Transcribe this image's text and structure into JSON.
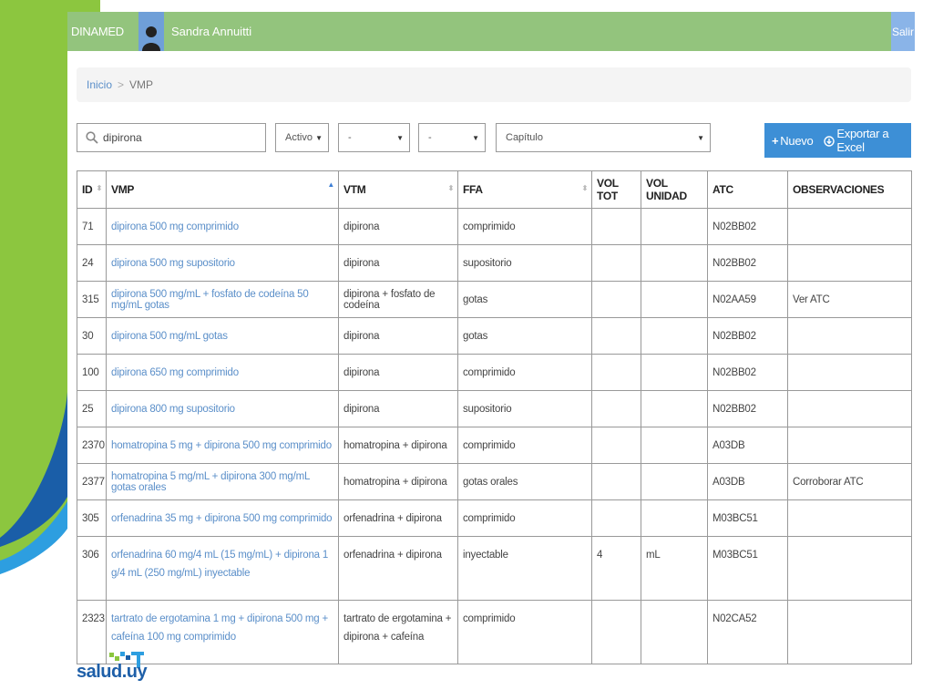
{
  "header": {
    "brand": "DINAMED",
    "user_name": "Sandra Annuitti",
    "logout_label": "Salir"
  },
  "breadcrumb": {
    "home": "Inicio",
    "separator": ">",
    "current": "VMP"
  },
  "filters": {
    "search_value": "dipirona",
    "status_value": "Activo",
    "filter2_value": "-",
    "filter3_value": "-",
    "chapter_value": "Capítulo"
  },
  "actions": {
    "new_label": "Nuevo",
    "export_label": "Exportar a Excel"
  },
  "table": {
    "headers": {
      "id": "ID",
      "vmp": "VMP",
      "vtm": "VTM",
      "ffa": "FFA",
      "vol_tot": "VOL TOT",
      "vol_unidad": "VOL UNIDAD",
      "atc": "ATC",
      "observaciones": "OBSERVACIONES"
    },
    "rows": [
      {
        "id": "71",
        "vmp": "dipirona 500 mg comprimido",
        "vtm": "dipirona",
        "ffa": "comprimido",
        "vol_tot": "",
        "vol_unidad": "",
        "atc": "N02BB02",
        "obs": ""
      },
      {
        "id": "24",
        "vmp": "dipirona 500 mg supositorio",
        "vtm": "dipirona",
        "ffa": "supositorio",
        "vol_tot": "",
        "vol_unidad": "",
        "atc": "N02BB02",
        "obs": ""
      },
      {
        "id": "315",
        "vmp": "dipirona 500 mg/mL + fosfato de codeína 50 mg/mL gotas",
        "vtm": "dipirona + fosfato de codeína",
        "ffa": "gotas",
        "vol_tot": "",
        "vol_unidad": "",
        "atc": "N02AA59",
        "obs": "Ver ATC"
      },
      {
        "id": "30",
        "vmp": "dipirona 500 mg/mL gotas",
        "vtm": "dipirona",
        "ffa": "gotas",
        "vol_tot": "",
        "vol_unidad": "",
        "atc": "N02BB02",
        "obs": ""
      },
      {
        "id": "100",
        "vmp": "dipirona 650 mg comprimido",
        "vtm": "dipirona",
        "ffa": "comprimido",
        "vol_tot": "",
        "vol_unidad": "",
        "atc": "N02BB02",
        "obs": ""
      },
      {
        "id": "25",
        "vmp": "dipirona 800 mg supositorio",
        "vtm": "dipirona",
        "ffa": "supositorio",
        "vol_tot": "",
        "vol_unidad": "",
        "atc": "N02BB02",
        "obs": ""
      },
      {
        "id": "2370",
        "vmp": "homatropina 5 mg + dipirona 500 mg comprimido",
        "vtm": "homatropina + dipirona",
        "ffa": "comprimido",
        "vol_tot": "",
        "vol_unidad": "",
        "atc": "A03DB",
        "obs": ""
      },
      {
        "id": "2377",
        "vmp": "homatropina 5 mg/mL + dipirona 300 mg/mL gotas orales",
        "vtm": "homatropina + dipirona",
        "ffa": "gotas orales",
        "vol_tot": "",
        "vol_unidad": "",
        "atc": "A03DB",
        "obs": "Corroborar ATC"
      },
      {
        "id": "305",
        "vmp": "orfenadrina 35 mg + dipirona 500 mg comprimido",
        "vtm": "orfenadrina + dipirona",
        "ffa": "comprimido",
        "vol_tot": "",
        "vol_unidad": "",
        "atc": "M03BC51",
        "obs": ""
      },
      {
        "id": "306",
        "vmp": "orfenadrina 60 mg/4 mL (15 mg/mL) + dipirona 1 g/4 mL (250 mg/mL) inyectable",
        "vtm": "orfenadrina + dipirona",
        "ffa": "inyectable",
        "vol_tot": "4",
        "vol_unidad": "mL",
        "atc": "M03BC51",
        "obs": ""
      },
      {
        "id": "2323",
        "vmp": "tartrato de ergotamina 1 mg + dipirona 500 mg + cafeína 100 mg comprimido",
        "vtm": "tartrato de ergotamina + dipirona + cafeína",
        "ffa": "comprimido",
        "vol_tot": "",
        "vol_unidad": "",
        "atc": "N02CA52",
        "obs": ""
      }
    ]
  },
  "footer": {
    "logo_text": "salud.uy"
  },
  "colors": {
    "header_green": "#93c47d",
    "accent_blue": "#3d8fd6",
    "link_blue": "#5b8fc9"
  }
}
